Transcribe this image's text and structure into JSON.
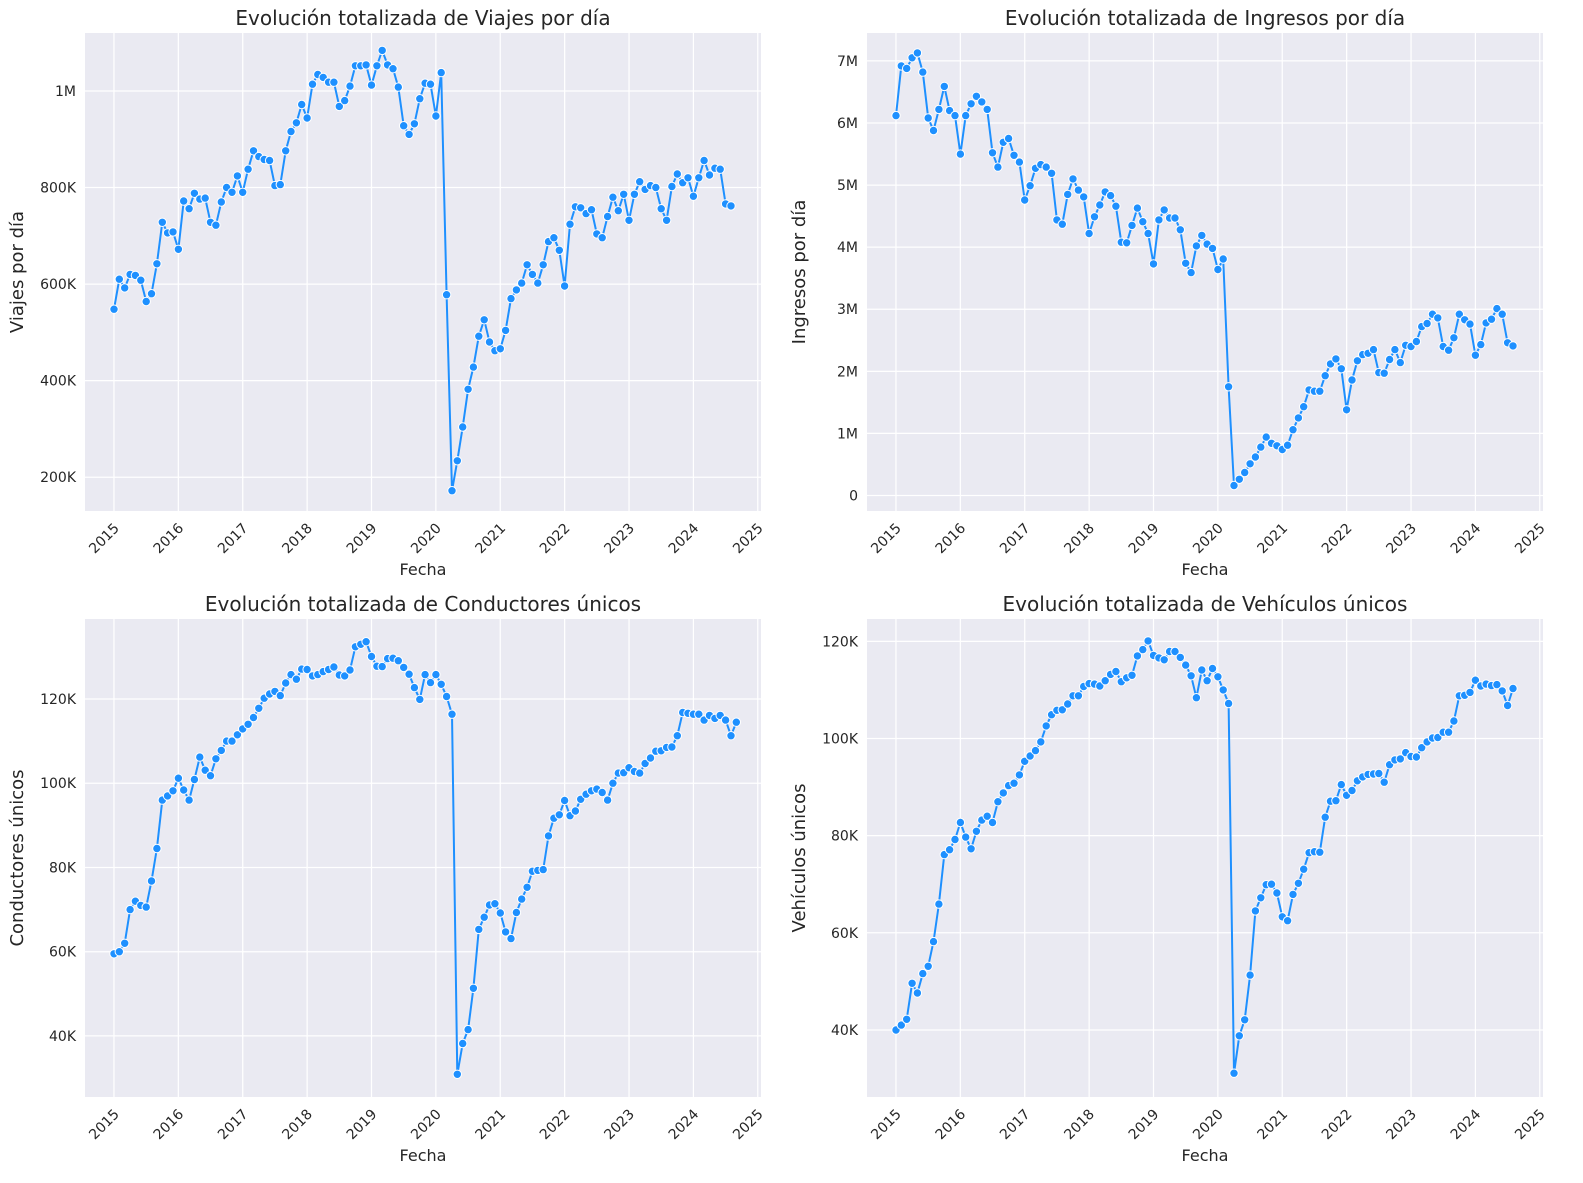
{
  "colors": {
    "series": "#1e90ff",
    "plot_bg": "#eaeaf2",
    "grid": "#ffffff"
  },
  "chart_data": [
    {
      "type": "line",
      "title": "Evolución totalizada de Viajes por día",
      "xlabel": "Fecha",
      "ylabel": "Viajes por día",
      "x_start": "2015-01",
      "x_step": "month",
      "xlim": [
        2014.55,
        2025.05
      ],
      "xticks": [
        "2015",
        "2016",
        "2017",
        "2018",
        "2019",
        "2020",
        "2021",
        "2022",
        "2023",
        "2024",
        "2025"
      ],
      "ylim": [
        130000,
        1120000
      ],
      "yticks": [
        200000,
        400000,
        600000,
        800000,
        1000000
      ],
      "ytick_labels": [
        "200K",
        "400K",
        "600K",
        "800K",
        "1M"
      ],
      "grid": true,
      "values": [
        548000,
        610000,
        592000,
        620000,
        618000,
        608000,
        564000,
        580000,
        642000,
        728000,
        706000,
        708000,
        672000,
        772000,
        756000,
        788000,
        776000,
        778000,
        728000,
        722000,
        770000,
        800000,
        790000,
        824000,
        790000,
        838000,
        876000,
        864000,
        858000,
        856000,
        804000,
        806000,
        876000,
        916000,
        934000,
        972000,
        944000,
        1014000,
        1034000,
        1028000,
        1018000,
        1018000,
        968000,
        980000,
        1010000,
        1052000,
        1052000,
        1054000,
        1012000,
        1052000,
        1084000,
        1054000,
        1046000,
        1008000,
        928000,
        910000,
        932000,
        984000,
        1016000,
        1014000,
        948000,
        1038000,
        578000,
        172000,
        234000,
        304000,
        382000,
        428000,
        492000,
        526000,
        480000,
        462000,
        466000,
        504000,
        570000,
        588000,
        602000,
        640000,
        620000,
        602000,
        640000,
        688000,
        696000,
        670000,
        596000,
        724000,
        760000,
        758000,
        746000,
        754000,
        704000,
        696000,
        740000,
        780000,
        752000,
        786000,
        732000,
        786000,
        812000,
        796000,
        804000,
        800000,
        756000,
        732000,
        802000,
        828000,
        810000,
        820000,
        782000,
        820000,
        856000,
        826000,
        840000,
        838000,
        766000,
        762000
      ]
    },
    {
      "type": "line",
      "title": "Evolución totalizada de Ingresos por día",
      "xlabel": "Fecha",
      "ylabel": "Ingresos por día",
      "x_start": "2015-01",
      "x_step": "month",
      "xlim": [
        2014.55,
        2025.05
      ],
      "xticks": [
        "2015",
        "2016",
        "2017",
        "2018",
        "2019",
        "2020",
        "2021",
        "2022",
        "2023",
        "2024",
        "2025"
      ],
      "ylim": [
        -250000,
        7450000
      ],
      "yticks": [
        0,
        1000000,
        2000000,
        3000000,
        4000000,
        5000000,
        6000000,
        7000000
      ],
      "ytick_labels": [
        "0",
        "1M",
        "2M",
        "3M",
        "4M",
        "5M",
        "6M",
        "7M"
      ],
      "grid": true,
      "values": [
        6120000,
        6920000,
        6880000,
        7050000,
        7130000,
        6820000,
        6080000,
        5880000,
        6220000,
        6590000,
        6200000,
        6120000,
        5500000,
        6120000,
        6310000,
        6430000,
        6340000,
        6220000,
        5520000,
        5290000,
        5690000,
        5750000,
        5480000,
        5370000,
        4760000,
        4990000,
        5270000,
        5330000,
        5290000,
        5190000,
        4440000,
        4370000,
        4850000,
        5100000,
        4920000,
        4810000,
        4220000,
        4490000,
        4680000,
        4890000,
        4830000,
        4660000,
        4080000,
        4070000,
        4350000,
        4630000,
        4410000,
        4220000,
        3730000,
        4440000,
        4600000,
        4470000,
        4470000,
        4280000,
        3740000,
        3590000,
        4020000,
        4190000,
        4050000,
        3980000,
        3640000,
        3810000,
        1750000,
        160000,
        260000,
        370000,
        510000,
        620000,
        780000,
        940000,
        840000,
        800000,
        740000,
        810000,
        1060000,
        1250000,
        1430000,
        1700000,
        1680000,
        1680000,
        1930000,
        2120000,
        2200000,
        2040000,
        1380000,
        1860000,
        2170000,
        2270000,
        2290000,
        2350000,
        1980000,
        1970000,
        2190000,
        2350000,
        2140000,
        2420000,
        2400000,
        2480000,
        2720000,
        2770000,
        2920000,
        2860000,
        2400000,
        2340000,
        2540000,
        2920000,
        2830000,
        2760000,
        2260000,
        2430000,
        2780000,
        2840000,
        3010000,
        2920000,
        2460000,
        2410000
      ]
    },
    {
      "type": "line",
      "title": "Evolución totalizada de Conductores únicos",
      "xlabel": "Fecha",
      "ylabel": "Conductores únicos",
      "x_start": "2015-01",
      "x_step": "month",
      "xlim": [
        2014.55,
        2025.05
      ],
      "xticks": [
        "2015",
        "2016",
        "2017",
        "2018",
        "2019",
        "2020",
        "2021",
        "2022",
        "2023",
        "2024",
        "2025"
      ],
      "ylim": [
        25500,
        139000
      ],
      "yticks": [
        40000,
        60000,
        80000,
        100000,
        120000
      ],
      "ytick_labels": [
        "40K",
        "60K",
        "80K",
        "100K",
        "120K"
      ],
      "grid": true,
      "values": [
        59500,
        60000,
        62000,
        70000,
        72000,
        71000,
        70600,
        76800,
        84500,
        96000,
        97000,
        98200,
        101200,
        98400,
        96000,
        100900,
        106200,
        103100,
        101800,
        105800,
        107800,
        110000,
        110000,
        111500,
        112900,
        114000,
        115600,
        117800,
        120200,
        121200,
        121800,
        120800,
        123800,
        125800,
        124700,
        127100,
        127000,
        125500,
        125800,
        126500,
        127000,
        127600,
        125700,
        125500,
        126900,
        132400,
        133000,
        133600,
        130100,
        127800,
        127700,
        129600,
        129700,
        129100,
        127500,
        125900,
        122700,
        119900,
        125800,
        123900,
        125800,
        123500,
        120600,
        116400,
        30900,
        38200,
        41500,
        51300,
        65300,
        68200,
        71100,
        71400,
        69200,
        64700,
        63100,
        69300,
        72500,
        75300,
        79100,
        79300,
        79500,
        87500,
        91700,
        92500,
        95900,
        92300,
        93400,
        96200,
        97400,
        98200,
        98600,
        97800,
        96000,
        100000,
        102400,
        102500,
        103700,
        102800,
        102400,
        104700,
        106000,
        107600,
        107700,
        108500,
        108600,
        111300,
        116800,
        116600,
        116400,
        116400,
        115000,
        116100,
        115400,
        116100,
        115000,
        111300,
        114500
      ]
    },
    {
      "type": "line",
      "title": "Evolución totalizada de Vehículos únicos",
      "xlabel": "Fecha",
      "ylabel": "Vehículos únicos",
      "x_start": "2015-01",
      "x_step": "month",
      "xlim": [
        2014.55,
        2025.05
      ],
      "xticks": [
        "2015",
        "2016",
        "2017",
        "2018",
        "2019",
        "2020",
        "2021",
        "2022",
        "2023",
        "2024",
        "2025"
      ],
      "ylim": [
        26200,
        124600
      ],
      "yticks": [
        40000,
        60000,
        80000,
        100000,
        120000
      ],
      "ytick_labels": [
        "40K",
        "60K",
        "80K",
        "100K",
        "120K"
      ],
      "grid": true,
      "values": [
        40000,
        41000,
        42200,
        49600,
        47600,
        51600,
        53100,
        58200,
        65900,
        76100,
        77100,
        79200,
        82700,
        79700,
        77300,
        80900,
        83200,
        84000,
        82700,
        87000,
        88800,
        90300,
        90800,
        92500,
        95300,
        96400,
        97500,
        99300,
        102600,
        104900,
        105800,
        105900,
        107100,
        108800,
        108800,
        110700,
        111300,
        111200,
        110800,
        111900,
        113200,
        113800,
        111700,
        112500,
        113000,
        117000,
        118300,
        120100,
        117100,
        116600,
        116200,
        117900,
        117900,
        116700,
        115100,
        112900,
        108400,
        114100,
        111900,
        114400,
        112700,
        110000,
        107200,
        31100,
        38800,
        42100,
        51300,
        64500,
        67200,
        69900,
        70000,
        68200,
        63300,
        62500,
        67900,
        70200,
        73100,
        76500,
        76700,
        76600,
        83800,
        87100,
        87200,
        90500,
        88300,
        89300,
        91300,
        92100,
        92600,
        92700,
        92800,
        91000,
        94600,
        95600,
        95800,
        97100,
        96300,
        96200,
        98100,
        99300,
        100100,
        100200,
        101300,
        101300,
        103600,
        108800,
        108900,
        109500,
        112000,
        110800,
        111200,
        110900,
        111100,
        109800,
        106800,
        110300
      ]
    }
  ]
}
